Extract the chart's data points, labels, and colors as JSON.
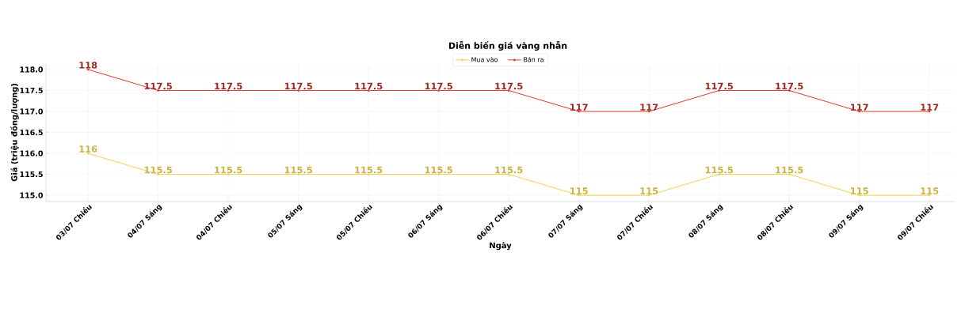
{
  "chart_data": {
    "type": "line",
    "title": "Diễn biến giá vàng nhẫn",
    "xlabel": "Ngày",
    "ylabel": "Giá (triệu đồng/lượng)",
    "categories": [
      "03/07 Chiều",
      "04/07 Sáng",
      "04/07 Chiều",
      "05/07 Sáng",
      "05/07 Chiều",
      "06/07 Sáng",
      "06/07 Chiều",
      "07/07 Sáng",
      "07/07 Chiều",
      "08/07 Sáng",
      "08/07 Chiều",
      "09/07 Sáng",
      "09/07 Chiều"
    ],
    "series": [
      {
        "name": "Mua vào",
        "color": "#f2d14c",
        "values": [
          116,
          115.5,
          115.5,
          115.5,
          115.5,
          115.5,
          115.5,
          115,
          115,
          115.5,
          115.5,
          115,
          115
        ]
      },
      {
        "name": "Bán ra",
        "color": "#e0392c",
        "values": [
          118,
          117.5,
          117.5,
          117.5,
          117.5,
          117.5,
          117.5,
          117,
          117,
          117.5,
          117.5,
          117,
          117
        ]
      }
    ],
    "ylim": [
      114.85,
      118.15
    ],
    "yticks": [
      {
        "value": 115,
        "label": "115.0"
      },
      {
        "value": 115.5,
        "label": "115.5"
      },
      {
        "value": 116,
        "label": "116.0"
      },
      {
        "value": 116.5,
        "label": "116.5"
      },
      {
        "value": 117,
        "label": "117.0"
      },
      {
        "value": 117.5,
        "label": "117.5"
      },
      {
        "value": 118,
        "label": "118.0"
      }
    ],
    "grid": true,
    "legend": "top",
    "marker": "circle",
    "line_style": "solid",
    "data_labels": true
  }
}
